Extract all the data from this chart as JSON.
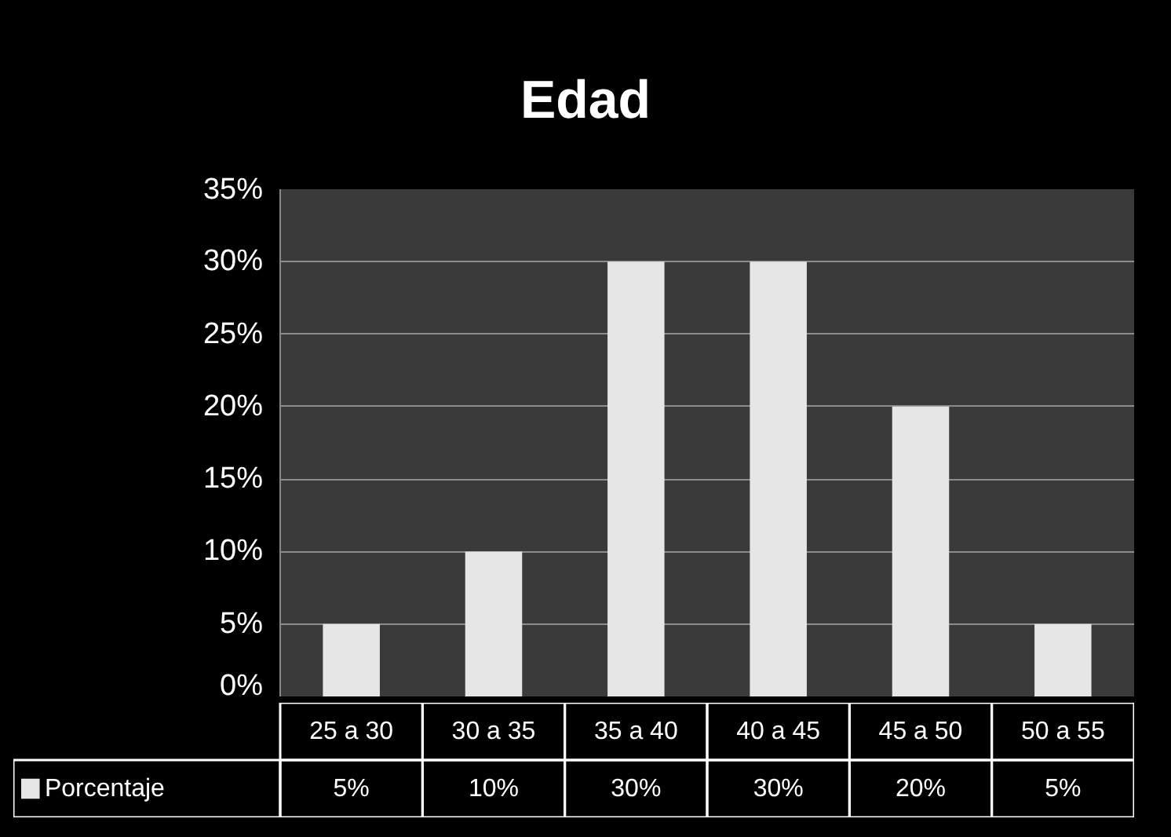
{
  "chart_data": {
    "type": "bar",
    "title": "Edad",
    "categories": [
      "25 a 30",
      "30 a 35",
      "35 a 40",
      "40 a 45",
      "45 a 50",
      "50 a 55"
    ],
    "series": [
      {
        "name": "Porcentaje",
        "color": "#e6e6e6",
        "values": [
          5,
          10,
          30,
          30,
          20,
          5
        ],
        "value_labels": [
          "5%",
          "10%",
          "30%",
          "30%",
          "20%",
          "5%"
        ]
      }
    ],
    "ylim": [
      0,
      35
    ],
    "yticks": [
      {
        "value": 0,
        "label": "0%"
      },
      {
        "value": 5,
        "label": "5%"
      },
      {
        "value": 10,
        "label": "10%"
      },
      {
        "value": 15,
        "label": "15%"
      },
      {
        "value": 20,
        "label": "20%"
      },
      {
        "value": 25,
        "label": "25%"
      },
      {
        "value": 30,
        "label": "30%"
      },
      {
        "value": 35,
        "label": "35%"
      }
    ],
    "grid": "y",
    "legend": "bottom"
  }
}
